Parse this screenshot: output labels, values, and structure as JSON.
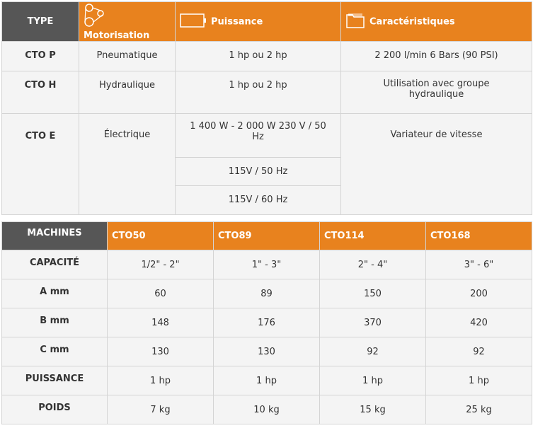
{
  "table1": {
    "headers": [
      {
        "label": "TYPE",
        "icon": ""
      },
      {
        "label": "Motorisation",
        "icon": "belt-pulley-icon"
      },
      {
        "label": "Puissance",
        "icon": "battery-icon"
      },
      {
        "label": "Caractéristiques",
        "icon": "folder-icon"
      }
    ],
    "rows": [
      {
        "type": "CTO P",
        "motor": "Pneumatique",
        "power": "1 hp ou 2 hp",
        "specs": "2 200 l/min 6 Bars (90 PSI)"
      },
      {
        "type": "CTO H",
        "motor": "Hydraulique",
        "power": "1 hp ou 2 hp",
        "specs": "Utilisation avec groupe hydraulique"
      },
      {
        "type": "CTO E",
        "motor": "Électrique",
        "power": [
          "1 400 W - 2 000 W 230 V / 50 Hz",
          "115V / 50 Hz",
          "115V / 60 Hz"
        ],
        "specs": "Variateur de vitesse"
      }
    ]
  },
  "table2": {
    "headers": [
      "MACHINES",
      "CTO50",
      "CTO89",
      "CTO114",
      "CTO168"
    ],
    "rows": [
      {
        "label": "CAPACITÉ",
        "values": [
          "1/2\" - 2\"",
          "1\" - 3\"",
          "2\" - 4\"",
          "3\" - 6\""
        ]
      },
      {
        "label": "A mm",
        "values": [
          "60",
          "89",
          "150",
          "200"
        ]
      },
      {
        "label": "B mm",
        "values": [
          "148",
          "176",
          "370",
          "420"
        ]
      },
      {
        "label": "C mm",
        "values": [
          "130",
          "130",
          "92",
          "92"
        ]
      },
      {
        "label": "PUISSANCE",
        "values": [
          "1 hp",
          "1 hp",
          "1 hp",
          "1 hp"
        ]
      },
      {
        "label": "POIDS",
        "values": [
          "7 kg",
          "10 kg",
          "15 kg",
          "25 kg"
        ]
      }
    ]
  },
  "colors": {
    "accent": "#e8821e",
    "dark_header": "#565656",
    "cell": "#f4f4f4"
  }
}
